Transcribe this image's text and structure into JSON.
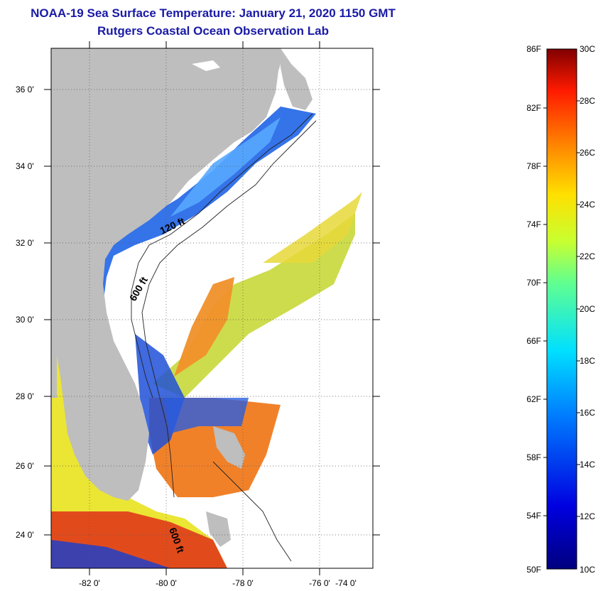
{
  "header": {
    "title": "NOAA-19 Sea Surface Temperature:  January 21, 2020 1150 GMT",
    "subtitle": "Rutgers Coastal Ocean Observation Lab"
  },
  "map": {
    "lat_ticks": [
      "36 0'",
      "34 0'",
      "32 0'",
      "30 0'",
      "28 0'",
      "26 0'",
      "24 0'"
    ],
    "lon_ticks": [
      "-82 0'",
      "-80 0'",
      "-78 0'",
      "-76 0'",
      "-74 0'"
    ],
    "isobath_labels": [
      "120 ft",
      "600 ft",
      "600 ft"
    ],
    "colors": {
      "land": "#bebebe",
      "no_data": "#ffffff",
      "cold": "#1c4fd8",
      "warm": "#f07a1e"
    }
  },
  "colorbar": {
    "fahrenheit": [
      "86F",
      "82F",
      "78F",
      "74F",
      "70F",
      "66F",
      "62F",
      "58F",
      "54F",
      "50F"
    ],
    "celsius": [
      "30C",
      "28C",
      "26C",
      "24C",
      "22C",
      "20C",
      "18C",
      "16C",
      "14C",
      "12C",
      "10C"
    ]
  }
}
